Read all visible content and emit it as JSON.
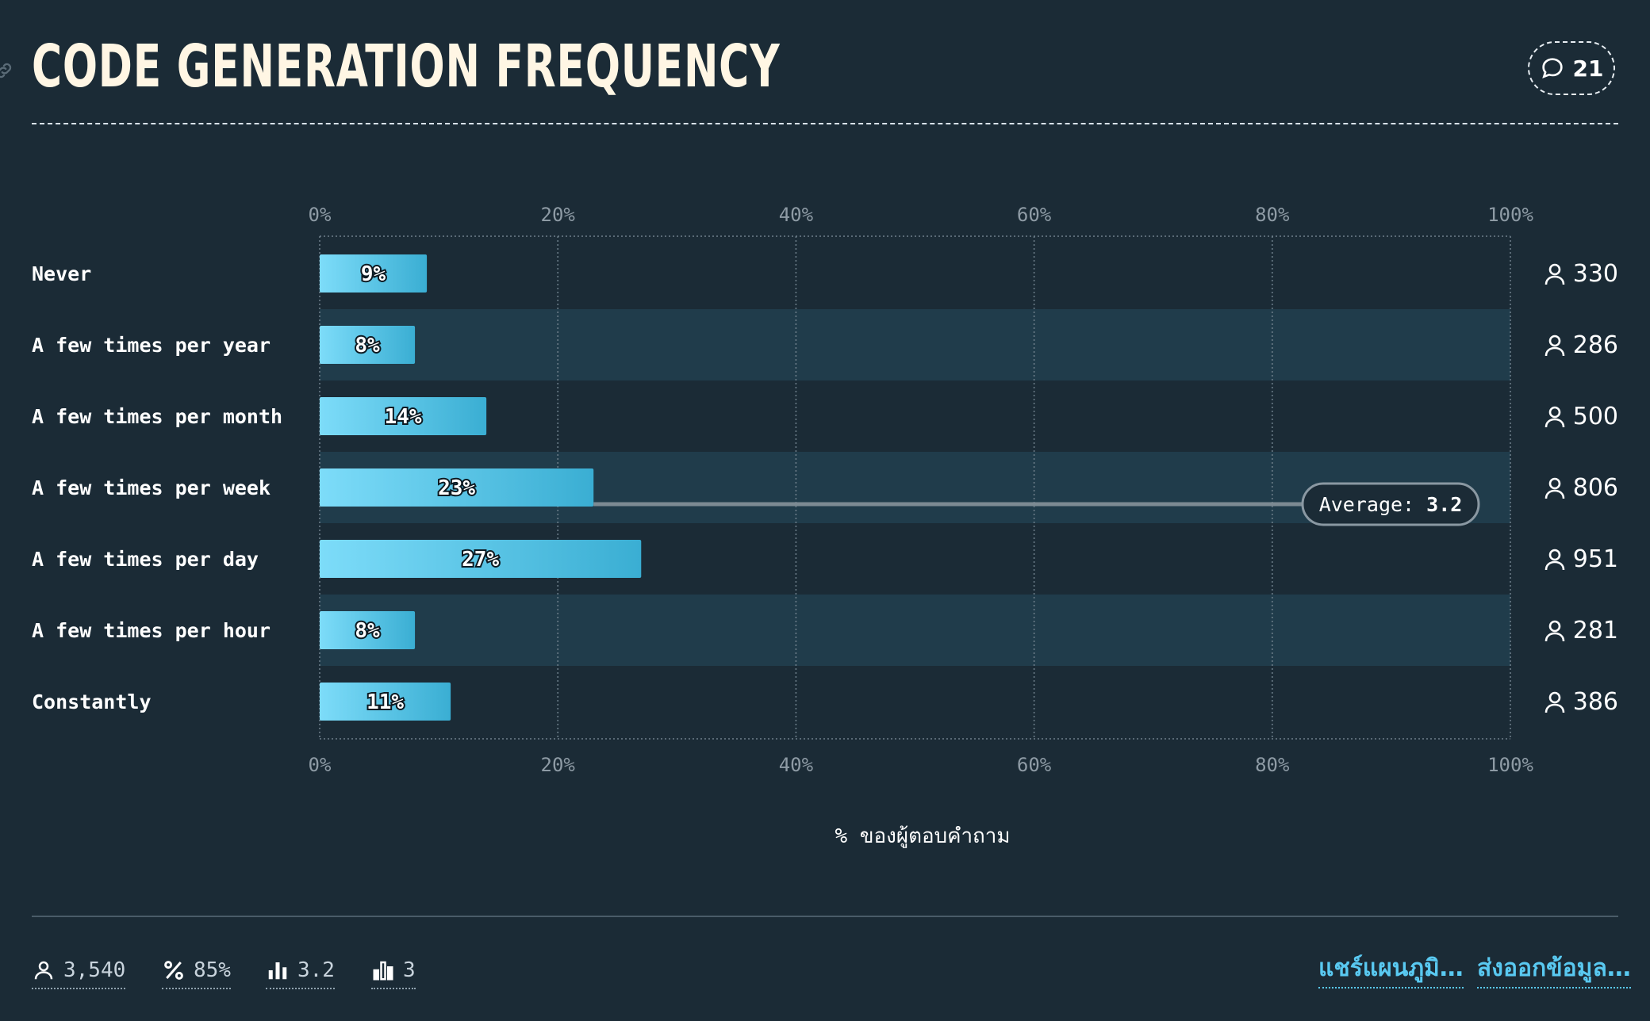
{
  "header": {
    "title": "CODE GENERATION FREQUENCY",
    "comment_count": "21"
  },
  "chart_data": {
    "type": "bar",
    "orientation": "horizontal",
    "title": "CODE GENERATION FREQUENCY",
    "categories": [
      "Never",
      "A few times per year",
      "A few times per month",
      "A few times per week",
      "A few times per day",
      "A few times per hour",
      "Constantly"
    ],
    "values": [
      9,
      8,
      14,
      23,
      27,
      8,
      11
    ],
    "value_labels": [
      "9%",
      "8%",
      "14%",
      "23%",
      "27%",
      "8%",
      "11%"
    ],
    "respondents": [
      "330",
      "286",
      "500",
      "806",
      "951",
      "281",
      "386"
    ],
    "xlim": [
      0,
      100
    ],
    "x_ticks": [
      "0%",
      "20%",
      "40%",
      "60%",
      "80%",
      "100%"
    ],
    "xlabel": "% ของผู้ตอบคำถาม",
    "average_label": "Average:",
    "average_value": "3.2",
    "average_category_index": 3,
    "grid": true,
    "colors": {
      "bar_start": "#7ddcf9",
      "bar_end": "#3aaed3",
      "row_stripe": "#203c4b",
      "background": "#1b2b36",
      "average_line": "#7c8a93"
    }
  },
  "footer": {
    "respondents_total": "3,540",
    "percent": "85%",
    "average": "3.2",
    "median": "3",
    "share_label": "แชร์แผนภูมิ…",
    "export_label": "ส่งออกข้อมูล…",
    "link_color": "#59c9f1"
  }
}
